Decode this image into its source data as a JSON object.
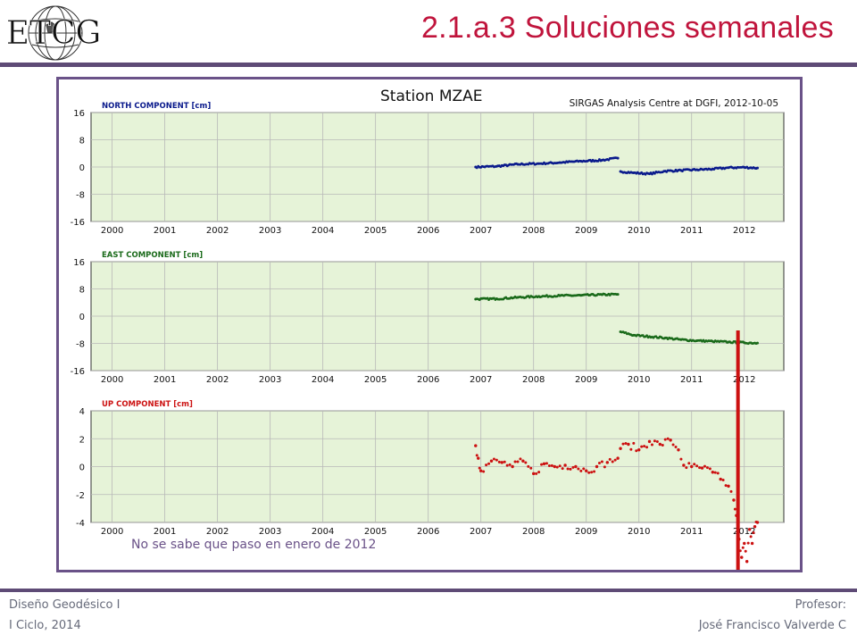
{
  "slide": {
    "title": "2.1.a.3 Soluciones semanales",
    "logo_text": "ETCG",
    "annotation": "No se sabe que paso en enero de 2012",
    "footer_left_1": "Diseño Geodésico I",
    "footer_left_2": "I Ciclo, 2014",
    "footer_right_1": "Profesor:",
    "footer_right_2": "José Francisco Valverde C",
    "accent_color": "#c0143c",
    "frame_color": "#6a5288",
    "marker_color": "#cc1111"
  },
  "chart_header": {
    "station_title": "Station MZAE",
    "source": "SIRGAS Analysis Centre at DGFI, 2012-10-05"
  },
  "chart_data": [
    {
      "type": "scatter",
      "title": "NORTH COMPONENT [cm]",
      "color": "#0a1a8c",
      "x_ticks": [
        "2000",
        "2001",
        "2002",
        "2003",
        "2004",
        "2005",
        "2006",
        "2007",
        "2008",
        "2009",
        "2010",
        "2011",
        "2012"
      ],
      "xlim": [
        1999.6,
        2012.75
      ],
      "ylim": [
        -16,
        16
      ],
      "y_ticks": [
        16,
        8,
        0,
        -8,
        -16
      ],
      "grid": true,
      "segments": [
        {
          "x": [
            2006.9,
            2007.3,
            2007.7,
            2008.1,
            2008.5,
            2008.9,
            2009.3,
            2009.6
          ],
          "y": [
            0.0,
            0.2,
            0.8,
            1.0,
            1.3,
            1.7,
            2.0,
            2.6
          ]
        },
        {
          "x": [
            2009.65,
            2009.9,
            2010.2,
            2010.5,
            2010.8,
            2011.1,
            2011.4,
            2011.7,
            2012.0,
            2012.25
          ],
          "y": [
            -1.3,
            -1.7,
            -2.0,
            -1.2,
            -1.0,
            -0.8,
            -0.6,
            -0.2,
            -0.1,
            -0.3
          ]
        }
      ]
    },
    {
      "type": "scatter",
      "title": "EAST COMPONENT [cm]",
      "color": "#1a6a1a",
      "x_ticks": [
        "2000",
        "2001",
        "2002",
        "2003",
        "2004",
        "2005",
        "2006",
        "2007",
        "2008",
        "2009",
        "2010",
        "2011",
        "2012"
      ],
      "xlim": [
        1999.6,
        2012.75
      ],
      "ylim": [
        -16,
        16
      ],
      "y_ticks": [
        16,
        8,
        0,
        -8,
        -16
      ],
      "grid": true,
      "segments": [
        {
          "x": [
            2006.9,
            2007.3,
            2007.7,
            2008.1,
            2008.5,
            2008.9,
            2009.3,
            2009.6
          ],
          "y": [
            5.0,
            5.1,
            5.5,
            5.8,
            6.0,
            6.1,
            6.3,
            6.4
          ]
        },
        {
          "x": [
            2009.65,
            2009.9,
            2010.2,
            2010.5,
            2010.8,
            2011.1,
            2011.4,
            2011.7,
            2012.0,
            2012.25
          ],
          "y": [
            -4.6,
            -5.6,
            -6.0,
            -6.4,
            -6.9,
            -7.2,
            -7.4,
            -7.6,
            -7.8,
            -7.9
          ]
        }
      ]
    },
    {
      "type": "scatter",
      "title": "UP COMPONENT [cm]",
      "color": "#cc1111",
      "x_ticks": [
        "2000",
        "2001",
        "2002",
        "2003",
        "2004",
        "2005",
        "2006",
        "2007",
        "2008",
        "2009",
        "2010",
        "2011",
        "2012"
      ],
      "xlim": [
        1999.6,
        2012.75
      ],
      "ylim": [
        -4,
        4
      ],
      "y_ticks": [
        4,
        2,
        0,
        -2,
        -4
      ],
      "grid": true,
      "segments": [
        {
          "x": [
            2006.9,
            2006.95,
            2007.0,
            2007.2,
            2007.4,
            2007.6,
            2007.8,
            2008.0,
            2008.2,
            2008.4,
            2008.6,
            2008.8,
            2009.0,
            2009.2,
            2009.4,
            2009.6
          ],
          "y": [
            1.5,
            0.6,
            -0.3,
            0.4,
            0.3,
            0.0,
            0.4,
            -0.5,
            0.2,
            0.0,
            0.1,
            0.0,
            -0.3,
            0.0,
            0.3,
            0.6
          ]
        },
        {
          "x": [
            2009.65,
            2009.8,
            2010.0,
            2010.2,
            2010.4,
            2010.6,
            2010.75,
            2010.85,
            2011.0,
            2011.2,
            2011.4,
            2011.55,
            2011.7,
            2011.8,
            2011.85,
            2011.9,
            2011.95,
            2012.0,
            2012.05,
            2012.1,
            2012.15,
            2012.2,
            2012.25
          ],
          "y": [
            1.3,
            1.6,
            1.2,
            1.8,
            1.6,
            1.9,
            1.2,
            0.1,
            0.0,
            -0.1,
            -0.4,
            -0.9,
            -1.4,
            -2.4,
            -3.5,
            -5.2,
            -6.5,
            -5.5,
            -6.8,
            -4.5,
            -5.5,
            -4.3,
            -4.0
          ]
        }
      ]
    }
  ]
}
